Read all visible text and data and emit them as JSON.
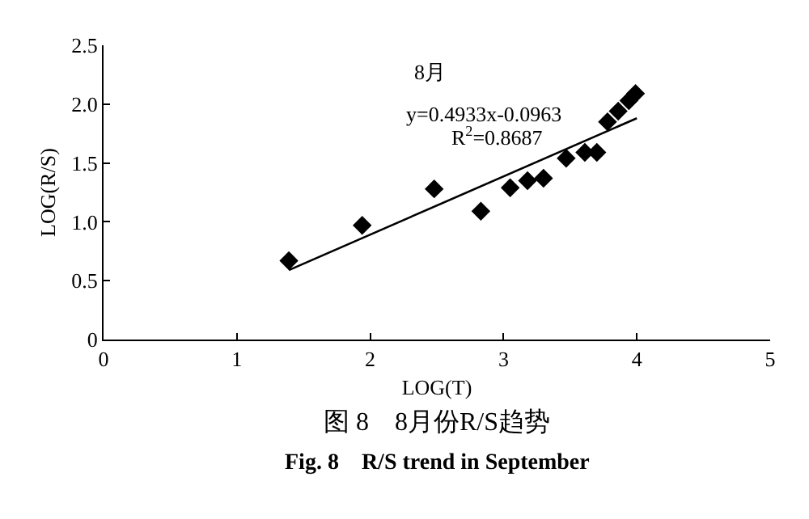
{
  "chart_data": {
    "type": "scatter",
    "xlabel": "LOG(T)",
    "ylabel": "LOG(R/S)",
    "series": [
      {
        "color": "#000000",
        "marker": "diamond",
        "x": [
          1.39,
          1.94,
          2.48,
          2.83,
          3.05,
          3.18,
          3.3,
          3.47,
          3.61,
          3.7,
          3.78,
          3.86,
          3.94,
          3.99
        ],
        "values": [
          0.67,
          0.97,
          1.28,
          1.09,
          1.29,
          1.35,
          1.37,
          1.54,
          1.59,
          1.59,
          1.85,
          1.94,
          2.03,
          2.09
        ]
      },
      {
        "type": "line",
        "color": "#000000",
        "marker": "none",
        "line_style": "solid",
        "x": [
          1.39,
          4.0
        ],
        "values": [
          0.59,
          1.88
        ]
      }
    ],
    "xlim": [
      0,
      5
    ],
    "xticks": [
      0,
      1,
      2,
      3,
      4,
      5
    ],
    "ylim": [
      0,
      2.5
    ],
    "yticks": [
      0,
      {
        "value": 0.5,
        "label": "0.5"
      },
      {
        "value": 1,
        "label": "1.0"
      },
      {
        "value": 1.5,
        "label": "1.5"
      },
      {
        "value": 2,
        "label": "2.0"
      },
      {
        "value": 2.5,
        "label": "2.5"
      }
    ],
    "annotations": [
      "8月",
      "y=0.4933x-0.0963",
      "R$^{2}$=0.8687",
      "图 8　8月份R/S趋势",
      "Fig. 8　R/S trend in September"
    ]
  }
}
